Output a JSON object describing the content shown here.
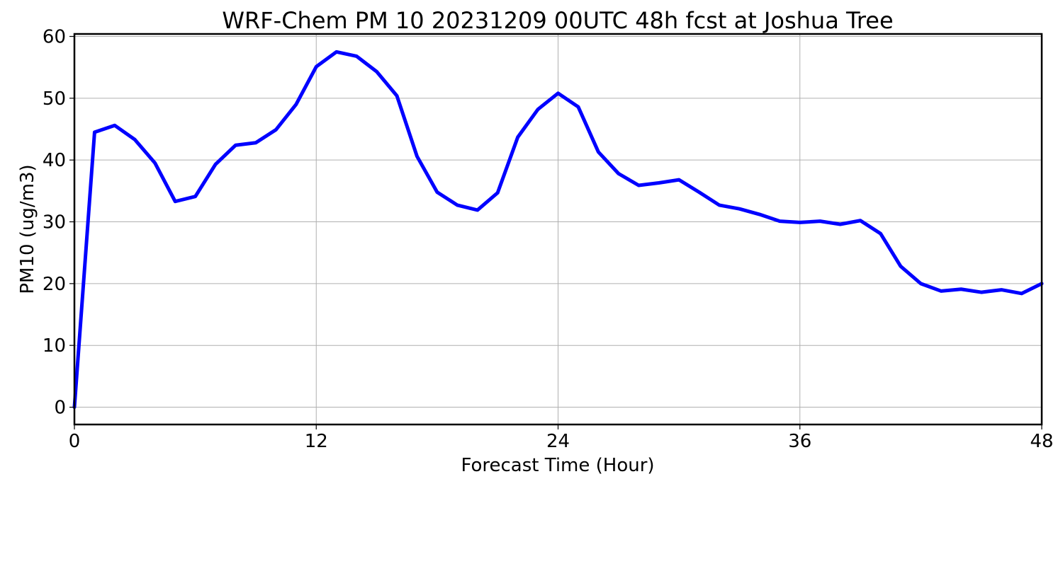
{
  "chart_data": {
    "type": "line",
    "title": "WRF-Chem PM 10  20231209 00UTC 48h fcst at Joshua Tree",
    "xlabel": "Forecast Time (Hour)",
    "ylabel": "PM10  (ug/m3)",
    "xlim": [
      0,
      48
    ],
    "ylim": [
      -2.8,
      60.4
    ],
    "xticks": [
      0,
      12,
      24,
      36,
      48
    ],
    "yticks": [
      0,
      10,
      20,
      30,
      40,
      50,
      60
    ],
    "grid": true,
    "line_color": "#0000ff",
    "series": [
      {
        "x": [
          0,
          1,
          2,
          3,
          4,
          5,
          6,
          7,
          8,
          9,
          10,
          11,
          12,
          13,
          14,
          15,
          16,
          17,
          18,
          19,
          20,
          21,
          22,
          23,
          24,
          25,
          26,
          27,
          28,
          29,
          30,
          31,
          32,
          33,
          34,
          35,
          36,
          37,
          38,
          39,
          40,
          41,
          42,
          43,
          44,
          45,
          46,
          47,
          48
        ],
        "values": [
          0,
          44.5,
          45.6,
          43.3,
          39.5,
          33.3,
          34.1,
          39.3,
          42.4,
          42.8,
          44.9,
          49.0,
          55.1,
          57.5,
          56.8,
          54.3,
          50.4,
          40.6,
          34.8,
          32.7,
          31.9,
          34.7,
          43.7,
          48.2,
          50.8,
          48.6,
          41.3,
          37.8,
          35.9,
          36.3,
          36.8,
          34.8,
          32.7,
          32.1,
          31.2,
          30.1,
          29.9,
          30.1,
          29.6,
          30.2,
          28.1,
          22.8,
          20.0,
          18.8,
          19.1,
          18.6,
          19.0,
          18.4,
          20.0
        ]
      }
    ]
  }
}
